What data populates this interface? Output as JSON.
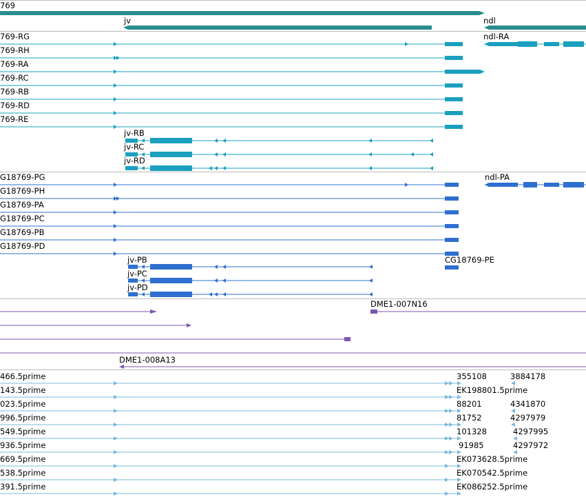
{
  "colors": {
    "gene": "#2b8c8c",
    "mrna": "#1aa0be",
    "cds": "#2f6fcf",
    "clone": "#7a56b0",
    "est": "#7ab8dd",
    "divider": "#bbbbbb"
  },
  "gene_track": {
    "genes": [
      {
        "label": "769",
        "strand": "+"
      },
      {
        "label": "jv",
        "strand": "-"
      },
      {
        "label": "ndl",
        "strand": "-"
      }
    ]
  },
  "transcript_track": {
    "left_transcripts": [
      {
        "label": "769-RG"
      },
      {
        "label": "769-RH"
      },
      {
        "label": "769-RA"
      },
      {
        "label": "769-RC"
      },
      {
        "label": "769-RB"
      },
      {
        "label": "769-RD"
      },
      {
        "label": "769-RE"
      }
    ],
    "jv_transcripts": [
      {
        "label": "jv-RB"
      },
      {
        "label": "jv-RC"
      },
      {
        "label": "jv-RD"
      }
    ],
    "ndl_transcript": {
      "label": "ndl-RA"
    }
  },
  "protein_track": {
    "left_proteins": [
      {
        "label": "G18769-PG"
      },
      {
        "label": "G18769-PH"
      },
      {
        "label": "G18769-PA"
      },
      {
        "label": "G18769-PC"
      },
      {
        "label": "G18769-PB"
      },
      {
        "label": "G18769-PD"
      }
    ],
    "extra_protein": {
      "label": "CG18769-PE"
    },
    "jv_proteins": [
      {
        "label": "jv-PB"
      },
      {
        "label": "jv-PC"
      },
      {
        "label": "jv-PD"
      }
    ],
    "ndl_protein": {
      "label": "ndl-PA"
    }
  },
  "clone_track": {
    "clones": [
      {
        "label": "DME1-007N16"
      },
      {
        "label": "DME1-008A13"
      }
    ]
  },
  "est_track": {
    "rows": [
      {
        "left": "466.5prime",
        "a": "355108",
        "b": "3884178"
      },
      {
        "left": "143.5prime",
        "a": "EK198801.5prime",
        "b": ""
      },
      {
        "left": "023.5prime",
        "a": "88201",
        "b": "4341870"
      },
      {
        "left": "996.5prime",
        "a": "81752",
        "b": "4297979"
      },
      {
        "left": "549.5prime",
        "a": "101328",
        "b": "4297995"
      },
      {
        "left": "936.5prime",
        "a": "91985",
        "b": "4297972"
      },
      {
        "left": "669.5prime",
        "a": "EK073628.5prime",
        "b": ""
      },
      {
        "left": "538.5prime",
        "a": "EK070542.5prime",
        "b": ""
      },
      {
        "left": "391.5prime",
        "a": "EK086252.5prime",
        "b": ""
      }
    ]
  }
}
